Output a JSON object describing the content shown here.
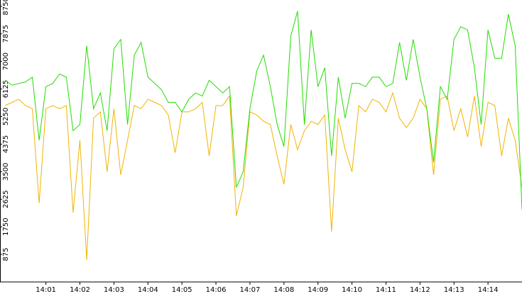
{
  "chart_data": {
    "type": "line",
    "x": [
      839.8,
      840.0,
      840.2,
      840.4,
      840.6,
      840.8,
      841.0,
      841.2,
      841.4,
      841.6,
      841.8,
      842.0,
      842.2,
      842.4,
      842.6,
      842.8,
      843.0,
      843.2,
      843.4,
      843.6,
      843.8,
      844.0,
      844.2,
      844.4,
      844.6,
      844.8,
      845.0,
      845.2,
      845.4,
      845.6,
      845.8,
      846.0,
      846.2,
      846.4,
      846.6,
      846.8,
      847.0,
      847.2,
      847.4,
      847.6,
      847.8,
      848.0,
      848.2,
      848.4,
      848.6,
      848.8,
      849.0,
      849.2,
      849.4,
      849.6,
      849.8,
      850.0,
      850.2,
      850.4,
      850.6,
      850.8,
      851.0,
      851.2,
      851.4,
      851.6,
      851.8,
      852.0,
      852.2,
      852.4,
      852.6,
      852.8,
      853.0,
      853.2,
      853.4,
      853.6,
      853.8,
      854.0,
      854.2,
      854.4,
      854.6,
      854.8,
      855.0
    ],
    "series": [
      {
        "color": "#f0b400",
        "values": [
          5600,
          5700,
          5800,
          5600,
          5500,
          2500,
          5500,
          5600,
          5500,
          5600,
          2200,
          4500,
          700,
          5200,
          5400,
          3500,
          5500,
          3400,
          4500,
          5600,
          5500,
          5800,
          5700,
          5600,
          5300,
          4100,
          5400,
          5400,
          5500,
          5700,
          4000,
          5600,
          5600,
          5900,
          2100,
          3000,
          5400,
          5300,
          5100,
          5000,
          4000,
          3100,
          5000,
          4200,
          4800,
          5100,
          5000,
          5300,
          1600,
          5200,
          4200,
          3500,
          5600,
          5400,
          5800,
          5700,
          5400,
          6000,
          5200,
          4900,
          5200,
          5800,
          5500,
          3400,
          5800,
          5900,
          4800,
          5500,
          4600,
          5900,
          4300,
          5700,
          5600,
          4000,
          5200,
          4500,
          3000
        ]
      },
      {
        "color": "#22dd00",
        "values": [
          6400,
          6250,
          6300,
          6350,
          6500,
          4500,
          6200,
          6300,
          6600,
          6500,
          4800,
          5000,
          7500,
          5500,
          6000,
          4800,
          7400,
          7700,
          5000,
          7200,
          7600,
          6500,
          6300,
          6100,
          5700,
          5700,
          5400,
          5800,
          6000,
          5900,
          6400,
          6200,
          6000,
          6200,
          3000,
          3500,
          5500,
          6700,
          7200,
          6200,
          5000,
          4300,
          7800,
          8600,
          5000,
          8000,
          6200,
          6800,
          4000,
          6500,
          5200,
          6300,
          6300,
          6200,
          6500,
          6500,
          6200,
          6300,
          7600,
          6400,
          7700,
          6500,
          5500,
          3800,
          6200,
          5800,
          7700,
          8100,
          8000,
          6800,
          5000,
          8000,
          7100,
          7100,
          8500,
          7500,
          2300
        ]
      }
    ],
    "xlim": [
      839.65,
      855.0
    ],
    "xticks": [
      {
        "value": 841,
        "label": "14:01"
      },
      {
        "value": 842,
        "label": "14:02"
      },
      {
        "value": 843,
        "label": "14:03"
      },
      {
        "value": 844,
        "label": "14:04"
      },
      {
        "value": 845,
        "label": "14:05"
      },
      {
        "value": 846,
        "label": "14:06"
      },
      {
        "value": 847,
        "label": "14:07"
      },
      {
        "value": 848,
        "label": "14:08"
      },
      {
        "value": 849,
        "label": "14:09"
      },
      {
        "value": 850,
        "label": "14:10"
      },
      {
        "value": 851,
        "label": "14:11"
      },
      {
        "value": 852,
        "label": "14:12"
      },
      {
        "value": 853,
        "label": "14:13"
      },
      {
        "value": 854,
        "label": "14:14"
      }
    ],
    "ylim": [
      0,
      8950
    ],
    "yticks": [
      875,
      1750,
      2625,
      3500,
      4375,
      5250,
      6125,
      7000,
      7875,
      8750
    ]
  }
}
